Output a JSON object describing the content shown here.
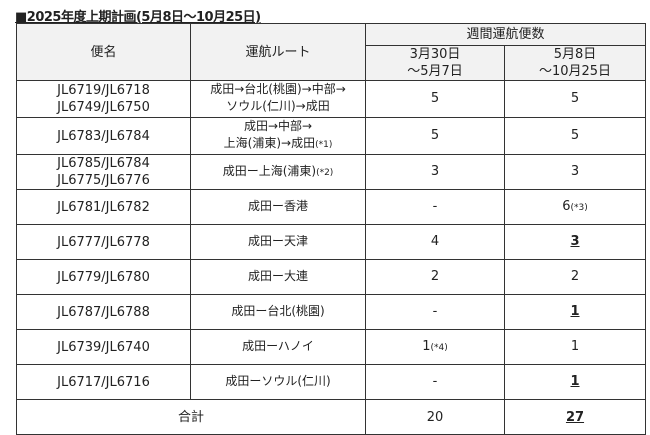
{
  "title": "■2025年度上期計画(5月8日～10月25日)",
  "headers": {
    "flight": "便名",
    "route": "運航ルート",
    "weekly": "週間運航便数",
    "period1": [
      "3月30日",
      "～5月7日"
    ],
    "period2": [
      "5月8日",
      "～10月25日"
    ]
  },
  "rows": [
    {
      "flights": [
        "JL6719/JL6718",
        "JL6749/JL6750"
      ],
      "route": [
        "成田→台北(桃園)→中部→",
        "ソウル(仁川)→成田"
      ],
      "route_note": "",
      "p1": "5",
      "p1_note": "",
      "p2": "5",
      "p2_note": "",
      "p2_changed": false
    },
    {
      "flights": [
        "JL6783/JL6784"
      ],
      "route": [
        "成田→中部→",
        "上海(浦東)→成田"
      ],
      "route_note": "(*1)",
      "p1": "5",
      "p1_note": "",
      "p2": "5",
      "p2_note": "",
      "p2_changed": false
    },
    {
      "flights": [
        "JL6785/JL6784",
        "JL6775/JL6776"
      ],
      "route": [
        "成田ー上海(浦東)"
      ],
      "route_note": "(*2)",
      "p1": "3",
      "p1_note": "",
      "p2": "3",
      "p2_note": "",
      "p2_changed": false
    },
    {
      "flights": [
        "JL6781/JL6782"
      ],
      "route": [
        "成田ー香港"
      ],
      "route_note": "",
      "p1": "-",
      "p1_note": "",
      "p2": "6",
      "p2_note": "(*3)",
      "p2_changed": false
    },
    {
      "flights": [
        "JL6777/JL6778"
      ],
      "route": [
        "成田ー天津"
      ],
      "route_note": "",
      "p1": "4",
      "p1_note": "",
      "p2": "3",
      "p2_note": "",
      "p2_changed": true
    },
    {
      "flights": [
        "JL6779/JL6780"
      ],
      "route": [
        "成田ー大連"
      ],
      "route_note": "",
      "p1": "2",
      "p1_note": "",
      "p2": "2",
      "p2_note": "",
      "p2_changed": false
    },
    {
      "flights": [
        "JL6787/JL6788"
      ],
      "route": [
        "成田ー台北(桃園)"
      ],
      "route_note": "",
      "p1": "-",
      "p1_note": "",
      "p2": "1",
      "p2_note": "",
      "p2_changed": true
    },
    {
      "flights": [
        "JL6739/JL6740"
      ],
      "route": [
        "成田ーハノイ"
      ],
      "route_note": "",
      "p1": "1",
      "p1_note": "(*4)",
      "p2": "1",
      "p2_note": "",
      "p2_changed": false
    },
    {
      "flights": [
        "JL6717/JL6716"
      ],
      "route": [
        "成田ーソウル(仁川)"
      ],
      "route_note": "",
      "p1": "-",
      "p1_note": "",
      "p2": "1",
      "p2_note": "",
      "p2_changed": true
    }
  ],
  "total": {
    "label": "合計",
    "p1": "20",
    "p2": "27",
    "p2_changed": true
  }
}
